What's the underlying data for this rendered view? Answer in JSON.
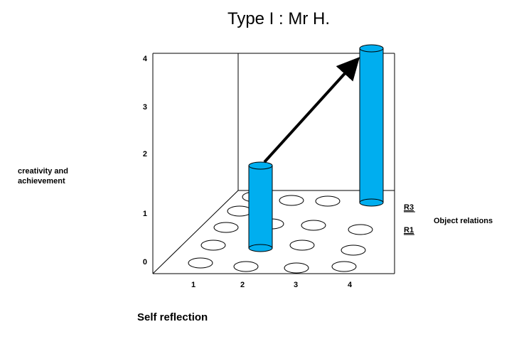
{
  "title": "Type I : Mr H.",
  "y_axis_label": [
    "creativity and",
    "achievement"
  ],
  "y_ticks": [
    "0",
    "1",
    "2",
    "3",
    "4"
  ],
  "x_ticks": [
    "1",
    "2",
    "3",
    "4"
  ],
  "x_axis_label": "Self reflection",
  "depth_labels": [
    "R3",
    "R1"
  ],
  "depth_axis_label": "Object relations"
}
